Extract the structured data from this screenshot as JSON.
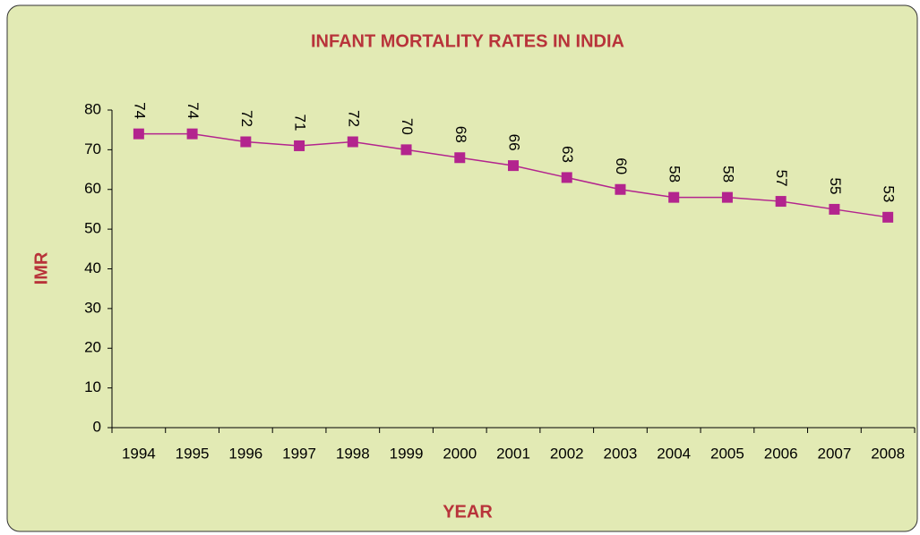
{
  "chart_data": {
    "type": "line",
    "title": "INFANT MORTALITY RATES IN INDIA",
    "x_label": "YEAR",
    "y_label": "IMR",
    "categories": [
      "1994",
      "1995",
      "1996",
      "1997",
      "1998",
      "1999",
      "2000",
      "2001",
      "2002",
      "2003",
      "2004",
      "2005",
      "2006",
      "2007",
      "2008"
    ],
    "values": [
      74,
      74,
      72,
      71,
      72,
      70,
      68,
      66,
      63,
      60,
      58,
      58,
      57,
      55,
      53
    ],
    "color": "#b3248e",
    "ylim": [
      0,
      80
    ],
    "yticks": [
      0,
      10,
      20,
      30,
      40,
      50,
      60,
      70,
      80
    ],
    "grid": false
  }
}
